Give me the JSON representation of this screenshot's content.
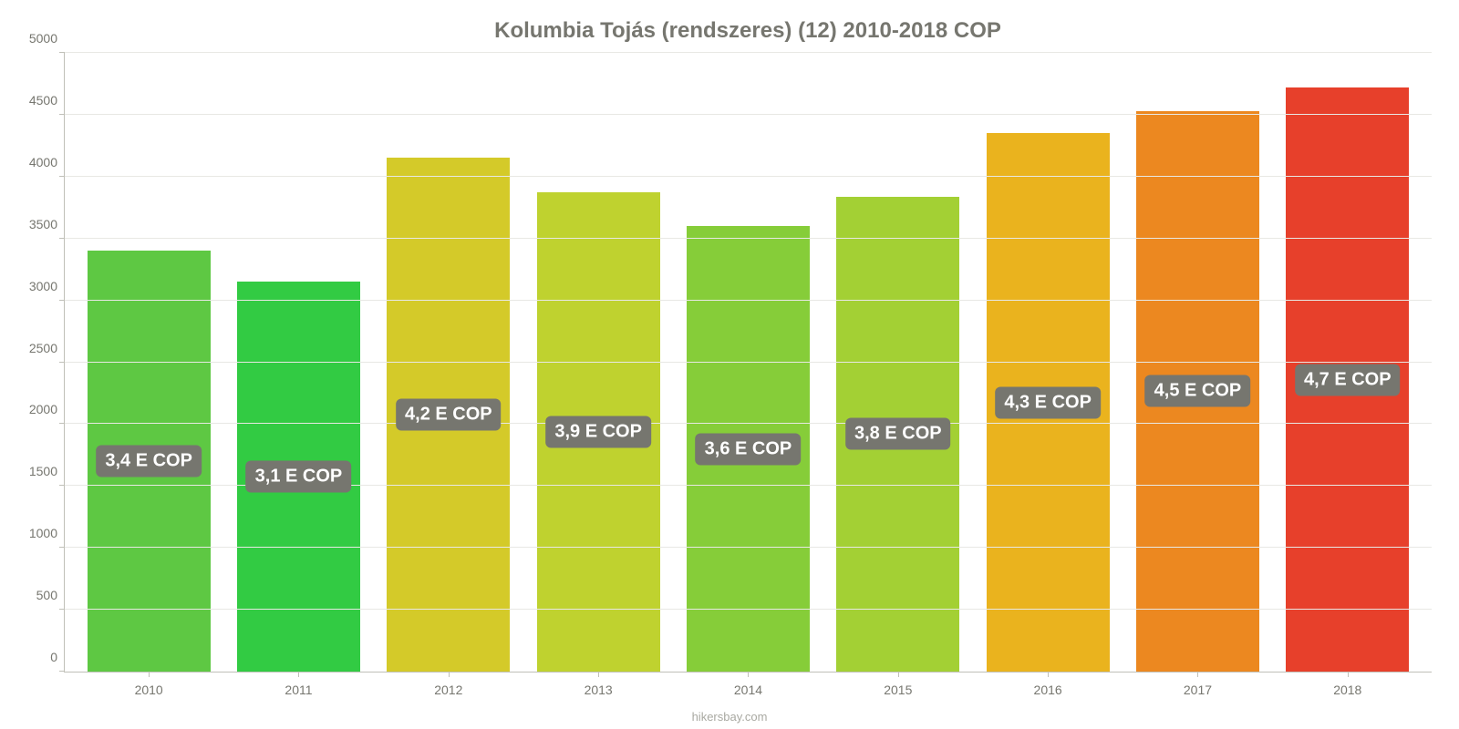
{
  "chart": {
    "type": "bar",
    "title": "Kolumbia Tojás (rendszeres) (12) 2010-2018 COP",
    "title_fontsize": 24,
    "title_color": "#76766f",
    "background_color": "#ffffff",
    "grid_color": "#e8e8e4",
    "axis_color": "#c0c0b8",
    "tick_label_color": "#76766f",
    "tick_fontsize": 14,
    "ylim": [
      0,
      5000
    ],
    "ytick_step": 500,
    "y_ticks": [
      "0",
      "500",
      "1000",
      "1500",
      "2000",
      "2500",
      "3000",
      "3500",
      "4000",
      "4500",
      "5000"
    ],
    "bar_width_pct": 82,
    "value_label_bg": "#76766f",
    "value_label_color": "#ffffff",
    "value_label_fontsize": 20,
    "footer": "hikersbay.com",
    "footer_color": "#a9a9a2",
    "categories": [
      "2010",
      "2011",
      "2012",
      "2013",
      "2014",
      "2015",
      "2016",
      "2017",
      "2018"
    ],
    "values": [
      3400,
      3150,
      4150,
      3870,
      3600,
      3840,
      4350,
      4530,
      4720
    ],
    "value_labels": [
      "3,4 E COP",
      "3,1 E COP",
      "4,2 E COP",
      "3,9 E COP",
      "3,6 E COP",
      "3,8 E COP",
      "4,3 E COP",
      "4,5 E COP",
      "4,7 E COP"
    ],
    "bar_colors": [
      "#5ec843",
      "#32cb43",
      "#d4ca29",
      "#bfd22f",
      "#86cd39",
      "#a3d034",
      "#eab31e",
      "#ec8820",
      "#e7402b"
    ]
  }
}
